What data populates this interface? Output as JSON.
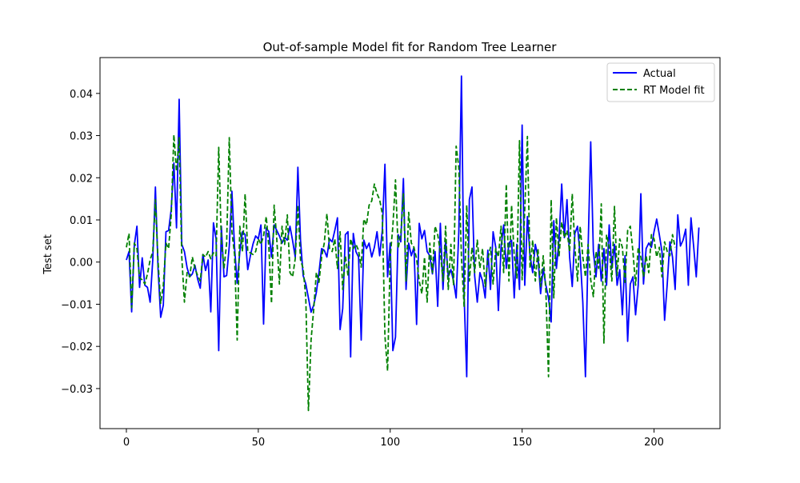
{
  "chart_data": {
    "type": "line",
    "title": "Out-of-sample Model fit for Random Tree Learner",
    "xlabel": "",
    "ylabel": "Test set",
    "xlim": [
      -10,
      225
    ],
    "ylim": [
      -0.0395,
      0.0485
    ],
    "xticks": [
      0,
      50,
      100,
      150,
      200
    ],
    "yticks": [
      -0.03,
      -0.02,
      -0.01,
      0.0,
      0.01,
      0.02,
      0.03,
      0.04
    ],
    "ytick_labels": [
      "−0.03",
      "−0.02",
      "−0.01",
      "0.00",
      "0.01",
      "0.02",
      "0.03",
      "0.04"
    ],
    "legend_position": "top-right",
    "series": [
      {
        "name": "Actual",
        "color": "#0000ff",
        "style": "solid",
        "values": [
          0.0005,
          0.0025,
          -0.0118,
          0.004,
          0.0085,
          -0.006,
          0.001,
          -0.0055,
          -0.006,
          -0.0095,
          0.0005,
          0.0178,
          -0.0015,
          -0.0131,
          -0.0102,
          0.0072,
          0.0075,
          0.0125,
          0.0235,
          0.0081,
          0.0386,
          0.0042,
          0.0025,
          -0.0013,
          -0.0035,
          -0.0028,
          -0.0008,
          -0.004,
          -0.0062,
          0.0018,
          -0.002,
          0.0005,
          -0.0118,
          0.0093,
          0.0055,
          -0.021,
          0.0085,
          -0.0035,
          -0.0032,
          0.0038,
          0.0168,
          0.0035,
          -0.005,
          0.0025,
          0.0072,
          0.0065,
          -0.0018,
          0.0015,
          0.0043,
          0.0062,
          0.0055,
          0.0088,
          -0.0147,
          0.0081,
          0.0072,
          0.0012,
          0.0088,
          0.0075,
          0.0062,
          0.0045,
          0.0058,
          0.0052,
          0.0085,
          0.0051,
          0.0012,
          0.0225,
          0.0052,
          -0.0032,
          -0.0052,
          -0.0085,
          -0.0119,
          -0.0102,
          -0.0072,
          -0.0025,
          0.0032,
          0.0028,
          0.0012,
          0.0055,
          0.0048,
          0.0075,
          0.0105,
          -0.016,
          -0.011,
          0.0065,
          0.0072,
          -0.0225,
          0.0068,
          0.0025,
          0.0012,
          -0.0185,
          0.0052,
          0.0032,
          0.0045,
          0.0012,
          0.0035,
          0.0072,
          0.0015,
          0.0075,
          0.0232,
          -0.0035,
          0.0045,
          -0.021,
          -0.0178,
          0.0065,
          0.0048,
          0.0198,
          -0.0065,
          0.0045,
          0.0015,
          0.0035,
          -0.0148,
          0.0092,
          0.0055,
          0.0075,
          0.0025,
          0.0015,
          -0.0028,
          0.0025,
          -0.0105,
          0.0092,
          -0.0065,
          0.0052,
          -0.0035,
          -0.0018,
          -0.0045,
          -0.0085,
          0.0072,
          0.0441,
          -0.0078,
          -0.0272,
          0.0148,
          0.0178,
          -0.0032,
          -0.0095,
          -0.0025,
          -0.0045,
          -0.0085,
          0.0028,
          -0.0065,
          0.0072,
          0.0035,
          -0.0115,
          0.0035,
          0.0088,
          -0.0015,
          0.0045,
          0.0052,
          -0.0085,
          0.0042,
          -0.0065,
          0.0325,
          -0.0055,
          0.0108,
          0.0015,
          -0.0025,
          0.0042,
          0.0012,
          -0.0075,
          -0.0015,
          -0.0055,
          -0.0085,
          -0.0142,
          0.0098,
          -0.0015,
          0.0055,
          0.0185,
          0.0058,
          0.0148,
          0.0012,
          -0.0058,
          0.0068,
          0.0085,
          0.0015,
          -0.0095,
          -0.0272,
          0.0032,
          0.0285,
          0.0025,
          -0.0035,
          0.0042,
          -0.0045,
          0.0032,
          -0.0055,
          0.0088,
          -0.0015,
          0.0042,
          -0.0055,
          -0.0018,
          -0.0125,
          0.0015,
          -0.0188,
          -0.0052,
          -0.0035,
          -0.0125,
          -0.0055,
          0.0162,
          -0.0052,
          0.0032,
          0.0045,
          0.0035,
          0.0072,
          0.0102,
          0.0065,
          0.0025,
          -0.0138,
          -0.0052,
          0.0048,
          0.0012,
          -0.0065,
          0.0112,
          0.0038,
          0.0052,
          0.0078,
          -0.0055,
          0.0105,
          0.0038,
          -0.0035,
          0.0082
        ]
      },
      {
        "name": "RT Model fit",
        "color": "#008000",
        "style": "dashed",
        "values": [
          0.0035,
          0.0068,
          -0.0108,
          0.0045,
          0.0032,
          -0.0038,
          -0.0042,
          -0.0052,
          -0.0028,
          0.0005,
          0.0025,
          0.0148,
          0.0002,
          -0.0098,
          -0.0055,
          0.0045,
          0.0032,
          0.0112,
          0.0302,
          0.0215,
          0.0295,
          0.0012,
          -0.0095,
          -0.0025,
          -0.0035,
          0.0012,
          -0.0015,
          -0.0032,
          -0.0045,
          0.0018,
          0.0012,
          0.0025,
          0.0008,
          0.0022,
          0.0015,
          0.0272,
          0.0048,
          -0.0015,
          0.0045,
          0.0295,
          0.0072,
          0.0018,
          -0.0185,
          0.0085,
          0.0025,
          0.0162,
          0.0025,
          0.0022,
          0.0018,
          0.0025,
          0.0055,
          0.0042,
          0.0062,
          0.0108,
          0.0035,
          -0.0098,
          0.0135,
          0.0055,
          -0.0052,
          0.0085,
          0.0042,
          0.0112,
          -0.0025,
          -0.0035,
          0.0008,
          0.0135,
          0.0005,
          -0.0015,
          -0.0085,
          -0.0352,
          -0.0185,
          -0.0112,
          -0.0025,
          -0.0048,
          0.0012,
          0.0045,
          0.0115,
          0.0032,
          0.0025,
          0.0055,
          -0.0015,
          0.0072,
          -0.0065,
          0.0015,
          -0.0032,
          0.0055,
          0.0032,
          0.0042,
          0.0028,
          -0.0012,
          0.0102,
          0.0088,
          0.0135,
          0.0145,
          0.0185,
          0.0162,
          0.0148,
          0.0115,
          -0.0175,
          -0.0258,
          0.0012,
          0.0085,
          0.0195,
          0.0032,
          0.0065,
          0.0162,
          -0.0045,
          0.0118,
          0.0045,
          0.0035,
          0.0008,
          -0.0045,
          -0.0075,
          0.0012,
          -0.0095,
          0.0045,
          -0.0025,
          0.0085,
          0.0065,
          0.0025,
          -0.0045,
          0.0085,
          -0.0065,
          0.0042,
          -0.0055,
          0.0275,
          0.0225,
          0.0012,
          -0.0105,
          0.0135,
          -0.0045,
          0.0035,
          -0.0025,
          0.0052,
          -0.0015,
          0.0032,
          -0.0058,
          0.0008,
          0.0035,
          -0.0052,
          0.0032,
          0.0012,
          0.0085,
          -0.0025,
          0.0185,
          -0.0045,
          0.0135,
          0.0015,
          -0.0038,
          0.0288,
          -0.0042,
          0.0125,
          0.0298,
          -0.0015,
          0.0052,
          -0.0045,
          0.0032,
          -0.0058,
          0.0015,
          -0.0068,
          -0.0272,
          0.0148,
          -0.0085,
          0.0105,
          0.0015,
          0.0095,
          0.0058,
          0.0075,
          0.0025,
          0.0162,
          0.0035,
          -0.0045,
          0.0085,
          0.0012,
          -0.0035,
          0.0042,
          -0.0042,
          -0.0082,
          0.0025,
          -0.0015,
          0.0138,
          -0.0192,
          0.0065,
          0.0035,
          -0.0045,
          0.0132,
          -0.0032,
          0.0055,
          0.0035,
          -0.0048,
          0.0075,
          0.0085,
          0.0025,
          -0.0055,
          0.0035,
          0.0012,
          -0.0035,
          0.0015,
          -0.0025,
          0.0065,
          0.0055,
          0.0012,
          0.0035,
          -0.0035,
          0.0048,
          0.0025,
          0.0015,
          0.0065,
          0.0035
        ]
      }
    ]
  }
}
